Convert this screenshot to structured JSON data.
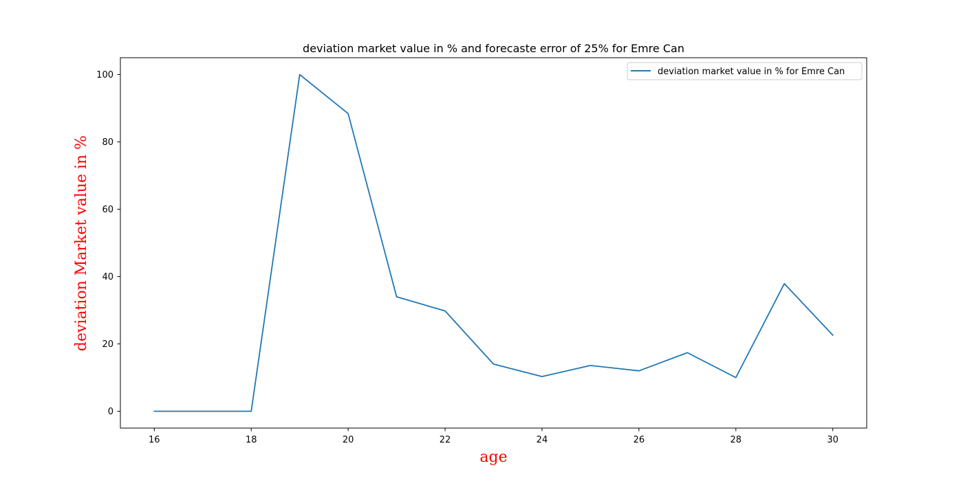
{
  "chart_data": {
    "type": "line",
    "title": "deviation market value in % and forecaste error of 25% for Emre Can",
    "xlabel": "age",
    "ylabel": "deviation Market value in %",
    "x": [
      16,
      17,
      18,
      19,
      20,
      21,
      22,
      23,
      24,
      25,
      26,
      27,
      28,
      29,
      30
    ],
    "series": [
      {
        "name": "deviation market value in % for Emre Can",
        "color": "#1f77b4",
        "values": [
          0,
          0,
          0,
          100,
          88.4,
          34,
          29.8,
          14,
          10.3,
          13.6,
          12,
          17.4,
          10,
          37.9,
          22.6
        ]
      }
    ],
    "xlim": [
      15.3,
      30.7
    ],
    "ylim": [
      -5,
      105
    ],
    "xticks": [
      16,
      18,
      20,
      22,
      24,
      26,
      28,
      30
    ],
    "yticks": [
      0,
      20,
      40,
      60,
      80,
      100
    ],
    "axis_label_color": "#ff0000",
    "grid": false,
    "legend_position": "top-right"
  }
}
